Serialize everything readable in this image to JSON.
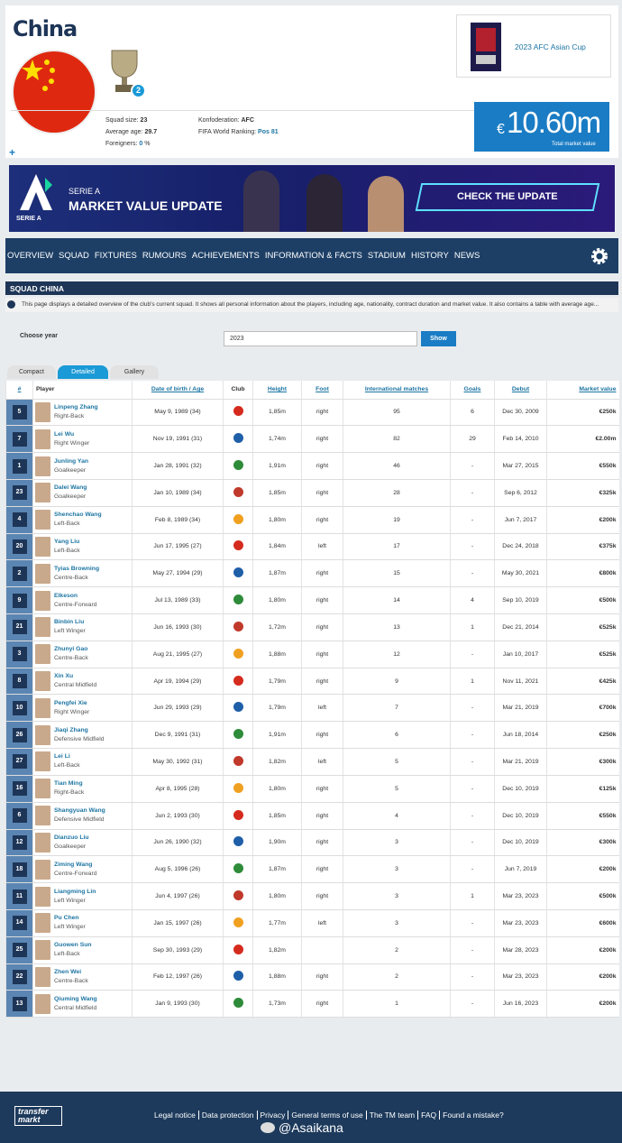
{
  "header": {
    "title": "China",
    "trophy_count": 2,
    "cup": "2023 AFC Asian Cup",
    "stats": [
      {
        "label": "Squad size:",
        "value": "23"
      },
      {
        "label": "Average age:",
        "value": "29.7"
      },
      {
        "label": "Foreigners:",
        "value": "0",
        "unit": "%"
      }
    ],
    "stats2": [
      {
        "label": "Konfoderation:",
        "value": "AFC"
      },
      {
        "label": "FIFA World Ranking:",
        "value": "Pos 81"
      }
    ],
    "market_value": {
      "currency": "€",
      "amount": "10.60m",
      "label": "Total market value"
    }
  },
  "banner": {
    "league": "SERIE A",
    "headline": "MARKET VALUE UPDATE",
    "button": "CHECK THE UPDATE",
    "logo": "SERIE A"
  },
  "nav": [
    "OVERVIEW",
    "SQUAD",
    "FIXTURES",
    "RUMOURS",
    "ACHIEVEMENTS",
    "INFORMATION & FACTS",
    "STADIUM",
    "HISTORY",
    "NEWS"
  ],
  "section": {
    "title": "SQUAD CHINA",
    "description": "This page displays a detailed overview of the club's current squad. It shows all personal information about the players, including age, nationality, contract duration and market value. It also contains a table with average age..."
  },
  "filter": {
    "label": "Choose year",
    "year": "2023",
    "button": "Show"
  },
  "tabs": [
    "Compact",
    "Detailed",
    "Gallery"
  ],
  "table": {
    "columns": [
      "#",
      "Player",
      "Date of birth / Age",
      "Club",
      "Height",
      "Foot",
      "International matches",
      "Goals",
      "Debut",
      "Market value"
    ],
    "rows": [
      [
        "5",
        "Linpeng Zhang",
        "Right-Back",
        "May 9, 1989 (34)",
        "1,85m",
        "right",
        "95",
        "6",
        "Dec 30, 2009",
        "€250k"
      ],
      [
        "7",
        "Lei Wu",
        "Right Winger",
        "Nov 19, 1991 (31)",
        "1,74m",
        "right",
        "82",
        "29",
        "Feb 14, 2010",
        "€2.00m"
      ],
      [
        "1",
        "Junling Yan",
        "Goalkeeper",
        "Jan 28, 1991 (32)",
        "1,91m",
        "right",
        "46",
        "-",
        "Mar 27, 2015",
        "€550k"
      ],
      [
        "23",
        "Dalei Wang",
        "Goalkeeper",
        "Jan 10, 1989 (34)",
        "1,85m",
        "right",
        "28",
        "-",
        "Sep 6, 2012",
        "€325k"
      ],
      [
        "4",
        "Shenchao Wang",
        "Left-Back",
        "Feb 8, 1989 (34)",
        "1,80m",
        "right",
        "19",
        "-",
        "Jun 7, 2017",
        "€200k"
      ],
      [
        "20",
        "Yang Liu",
        "Left-Back",
        "Jun 17, 1995 (27)",
        "1,84m",
        "left",
        "17",
        "-",
        "Dec 24, 2018",
        "€375k"
      ],
      [
        "2",
        "Tyias Browning",
        "Centre-Back",
        "May 27, 1994 (29)",
        "1,87m",
        "right",
        "15",
        "-",
        "May 30, 2021",
        "€800k"
      ],
      [
        "9",
        "Elkeson",
        "Centre-Forward",
        "Jul 13, 1989 (33)",
        "1,80m",
        "right",
        "14",
        "4",
        "Sep 10, 2019",
        "€500k"
      ],
      [
        "21",
        "Binbin Liu",
        "Left Winger",
        "Jun 16, 1993 (30)",
        "1,72m",
        "right",
        "13",
        "1",
        "Dec 21, 2014",
        "€525k"
      ],
      [
        "3",
        "Zhunyi Gao",
        "Centre-Back",
        "Aug 21, 1995 (27)",
        "1,88m",
        "right",
        "12",
        "-",
        "Jan 10, 2017",
        "€525k"
      ],
      [
        "8",
        "Xin Xu",
        "Central Midfield",
        "Apr 19, 1994 (29)",
        "1,79m",
        "right",
        "9",
        "1",
        "Nov 11, 2021",
        "€425k"
      ],
      [
        "10",
        "Pengfei Xie",
        "Right Winger",
        "Jun 29, 1993 (29)",
        "1,79m",
        "left",
        "7",
        "-",
        "Mar 21, 2019",
        "€700k"
      ],
      [
        "26",
        "Jiaqi Zhang",
        "Defensive Midfield",
        "Dec 9, 1991 (31)",
        "1,91m",
        "right",
        "6",
        "-",
        "Jun 18, 2014",
        "€250k"
      ],
      [
        "27",
        "Lei Li",
        "Left-Back",
        "May 30, 1992 (31)",
        "1,82m",
        "left",
        "5",
        "-",
        "Mar 21, 2019",
        "€300k"
      ],
      [
        "16",
        "Tian Ming",
        "Right-Back",
        "Apr 8, 1995 (28)",
        "1,80m",
        "right",
        "5",
        "-",
        "Dec 10, 2019",
        "€125k"
      ],
      [
        "6",
        "Shangyuan Wang",
        "Defensive Midfield",
        "Jun 2, 1993 (30)",
        "1,85m",
        "right",
        "4",
        "-",
        "Dec 10, 2019",
        "€550k"
      ],
      [
        "12",
        "Dianzuo Liu",
        "Goalkeeper",
        "Jun 26, 1990 (32)",
        "1,90m",
        "right",
        "3",
        "-",
        "Dec 10, 2019",
        "€300k"
      ],
      [
        "18",
        "Ziming Wang",
        "Centre-Forward",
        "Aug 5, 1996 (26)",
        "1,87m",
        "right",
        "3",
        "-",
        "Jun 7, 2019",
        "€200k"
      ],
      [
        "11",
        "Liangming Lin",
        "Left Winger",
        "Jun 4, 1997 (26)",
        "1,80m",
        "right",
        "3",
        "1",
        "Mar 23, 2023",
        "€500k"
      ],
      [
        "14",
        "Pu Chen",
        "Left Winger",
        "Jan 15, 1997 (26)",
        "1,77m",
        "left",
        "3",
        "-",
        "Mar 23, 2023",
        "€600k"
      ],
      [
        "25",
        "Guowen Sun",
        "Left-Back",
        "Sep 30, 1993 (29)",
        "1,82m",
        null,
        "2",
        "-",
        "Mar 28, 2023",
        "€200k"
      ],
      [
        "22",
        "Zhen Wei",
        "Centre-Back",
        "Feb 12, 1997 (26)",
        "1,88m",
        "right",
        "2",
        "-",
        "Mar 23, 2023",
        "€200k"
      ],
      [
        "13",
        "Qiuming Wang",
        "Central Midfield",
        "Jan 9, 1993 (30)",
        "1,73m",
        "right",
        "1",
        "-",
        "Jun 16, 2023",
        "€200k"
      ]
    ]
  },
  "footer": {
    "logo": [
      "transfer",
      "markt"
    ],
    "links": [
      "Legal notice",
      "Data protection",
      "Privacy",
      "General terms of use",
      "The TM team",
      "FAQ",
      "Found a mistake?"
    ],
    "watermark": "@Asaikana"
  }
}
